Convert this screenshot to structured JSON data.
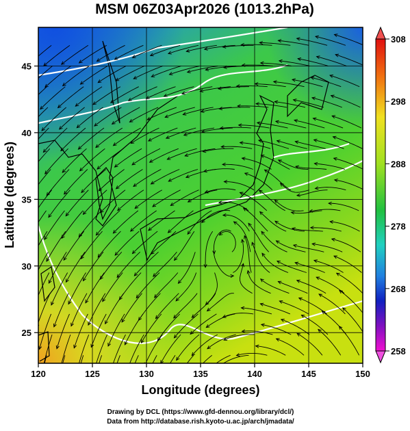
{
  "title": "MSM 06Z03Apr2026 (1013.2hPa)",
  "x_label": "Longitude (degrees)",
  "y_label": "Latitude  (degrees)",
  "xlim": [
    120,
    150
  ],
  "xticks": [
    120,
    125,
    130,
    135,
    140,
    145,
    150
  ],
  "ylim": [
    22.7,
    47.9
  ],
  "yticks": [
    25,
    30,
    35,
    40,
    45
  ],
  "colorbar": {
    "lim": [
      258,
      308
    ],
    "ticks": [
      258,
      268,
      278,
      288,
      298,
      308
    ]
  },
  "credits": [
    "Drawing by DCL (https://www.gfd-dennou.org/library/dcl/)",
    "Data from http://database.rish.kyoto-u.ac.jp/arch/jmadata/"
  ]
}
